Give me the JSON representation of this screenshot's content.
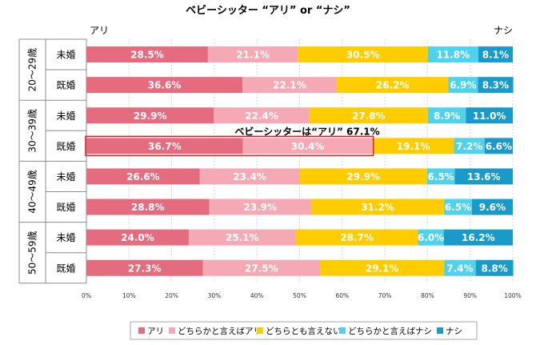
{
  "chart_data": {
    "type": "bar",
    "orientation": "horizontal",
    "stacked": true,
    "title": "ベビーシッター  “アリ” or “ナシ”",
    "left_label": "アリ",
    "right_label": "ナシ",
    "groups": [
      {
        "label": "20〜29歳",
        "rows": [
          "未婚",
          "既婚"
        ]
      },
      {
        "label": "30〜39歳",
        "rows": [
          "未婚",
          "既婚"
        ]
      },
      {
        "label": "40〜49歳",
        "rows": [
          "未婚",
          "既婚"
        ]
      },
      {
        "label": "50〜59歳",
        "rows": [
          "未婚",
          "既婚"
        ]
      }
    ],
    "series": [
      {
        "name": "アリ",
        "color": "#e46c7e",
        "values": [
          28.5,
          36.6,
          29.9,
          36.7,
          26.6,
          28.8,
          24.0,
          27.3
        ]
      },
      {
        "name": "どちらかと言えばアリ",
        "color": "#f4a9b5",
        "values": [
          21.1,
          22.1,
          22.4,
          30.4,
          23.4,
          23.9,
          25.1,
          27.5
        ]
      },
      {
        "name": "どちらとも言えない",
        "color": "#ffcc00",
        "values": [
          30.5,
          26.2,
          27.8,
          19.1,
          29.9,
          31.2,
          28.7,
          29.1
        ]
      },
      {
        "name": "どちらかと言えばナシ",
        "color": "#4fd2ec",
        "values": [
          11.8,
          6.9,
          8.9,
          7.2,
          6.5,
          6.5,
          6.0,
          7.4
        ]
      },
      {
        "name": "ナシ",
        "color": "#1a9ac9",
        "values": [
          8.1,
          8.3,
          11.0,
          6.6,
          13.6,
          9.6,
          16.2,
          8.8
        ]
      }
    ],
    "xlim": [
      0,
      100
    ],
    "x_ticks": [
      "0%",
      "10%",
      "20%",
      "30%",
      "40%",
      "50%",
      "60%",
      "70%",
      "80%",
      "90%",
      "100%"
    ],
    "annotation": {
      "text": "ベビーシッターは“アリ”  67.1%",
      "row_index": 3,
      "covers_series": 2
    },
    "legend_position": "bottom"
  }
}
